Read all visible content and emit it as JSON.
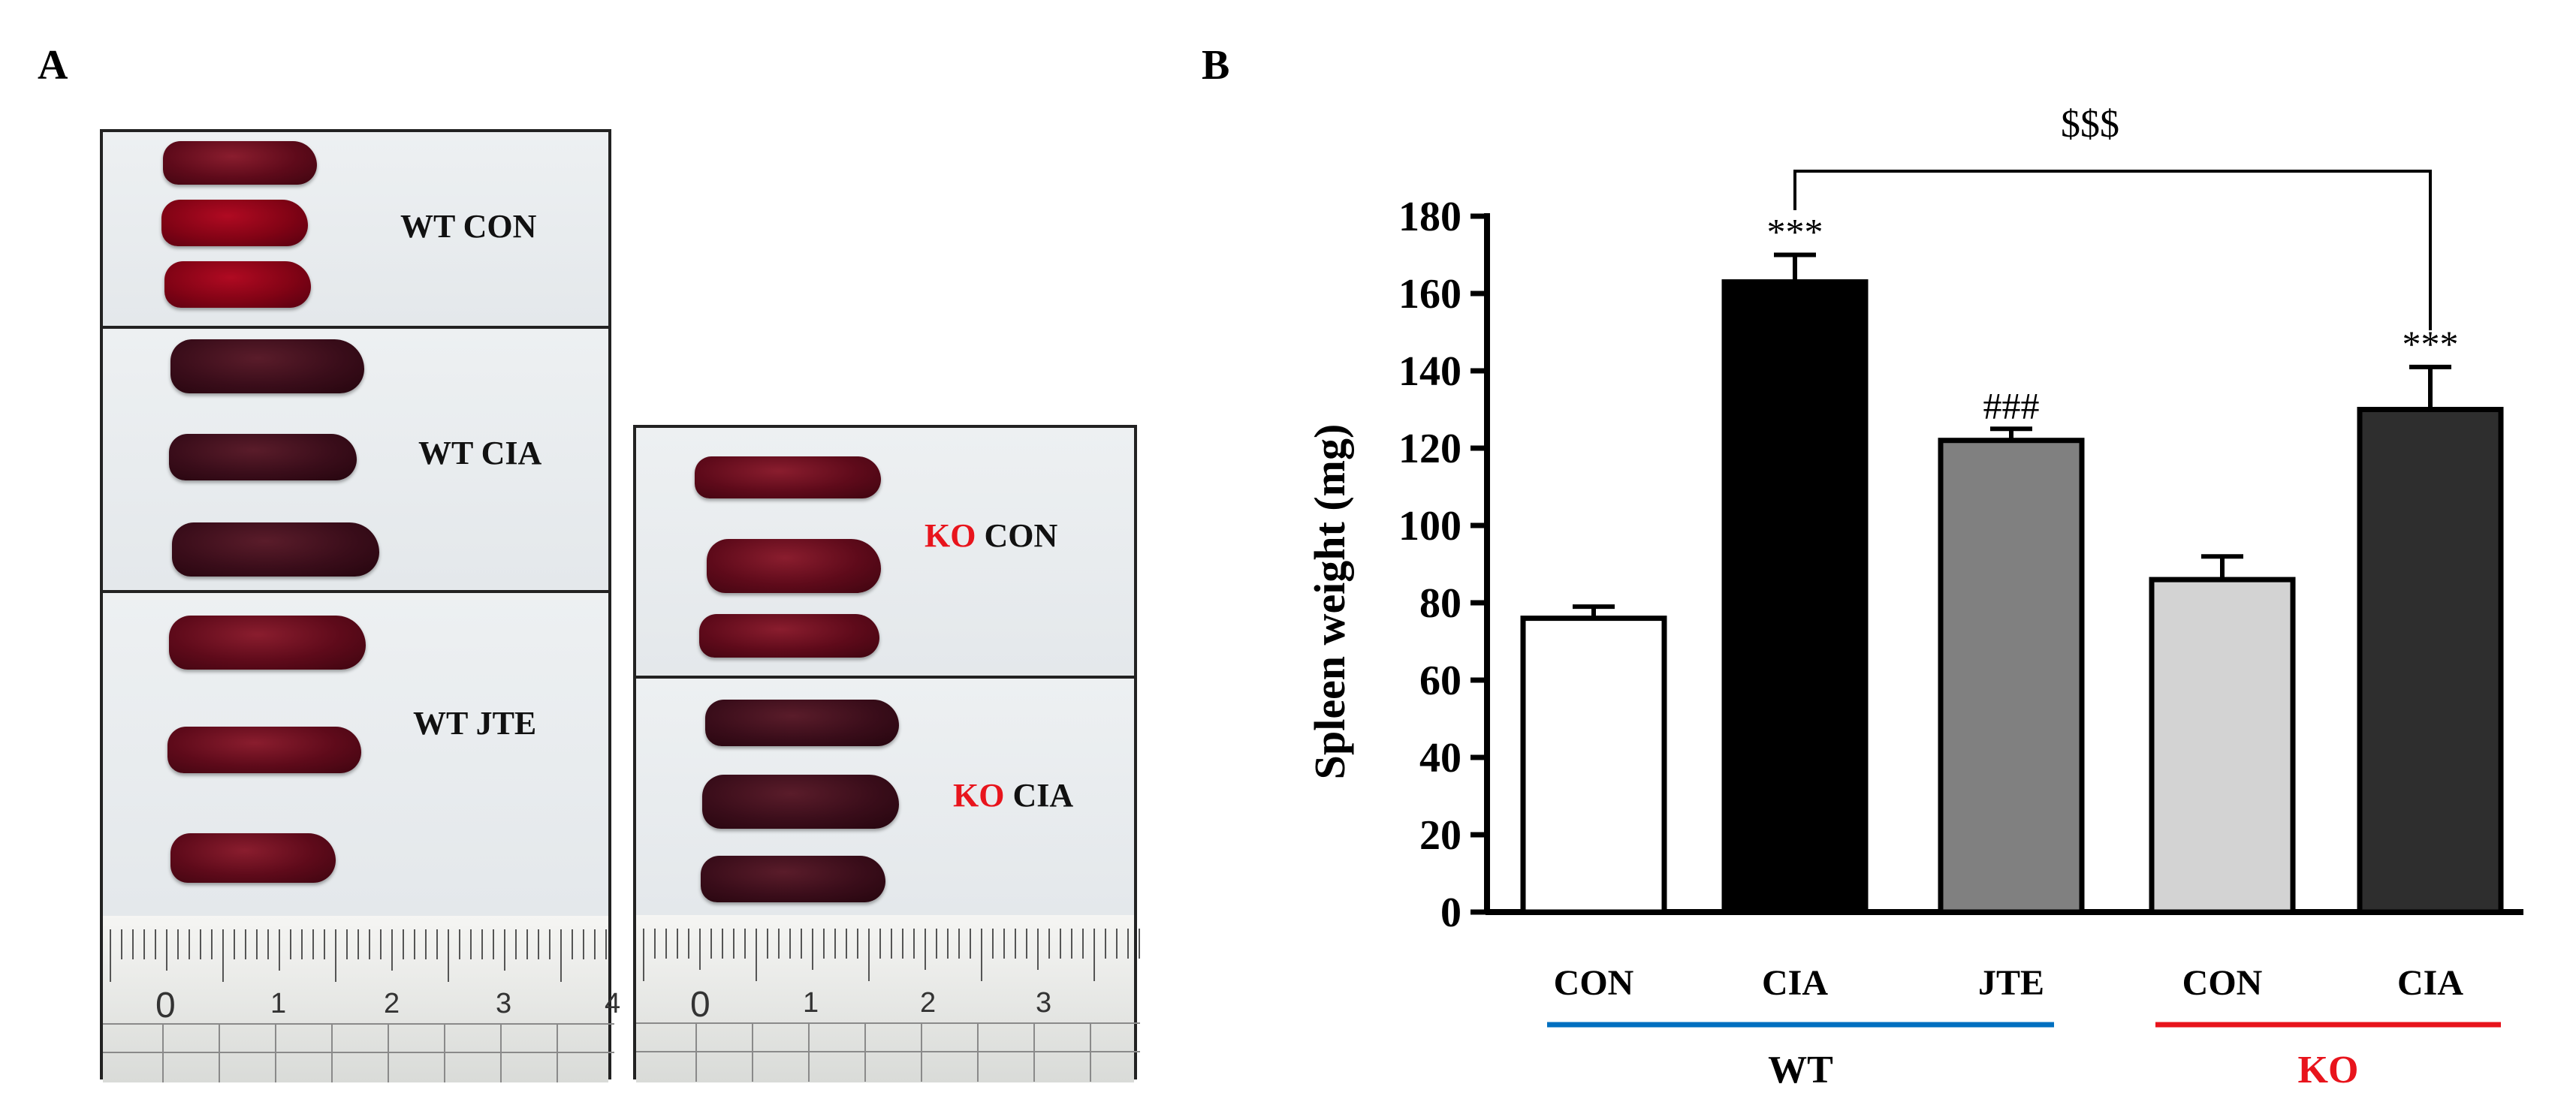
{
  "panel_a": {
    "letter": "A",
    "wt_groups": [
      {
        "prefix": "WT",
        "name": "CON"
      },
      {
        "prefix": "WT",
        "name": "CIA"
      },
      {
        "prefix": "WT",
        "name": "JTE"
      }
    ],
    "ko_groups": [
      {
        "prefix": "KO",
        "name": "CON"
      },
      {
        "prefix": "KO",
        "name": "CIA"
      }
    ],
    "ruler_left": [
      "0",
      "1",
      "2",
      "3",
      "4"
    ],
    "ruler_right": [
      "0",
      "1",
      "2",
      "3"
    ]
  },
  "panel_b": {
    "letter": "B"
  },
  "chart_data": {
    "type": "bar",
    "ylabel": "Spleen weight (mg)",
    "ylim": [
      0,
      180
    ],
    "yticks": [
      0,
      20,
      40,
      60,
      80,
      100,
      120,
      140,
      160,
      180
    ],
    "categories": [
      "CON",
      "CIA",
      "JTE",
      "CON",
      "CIA"
    ],
    "values": [
      76,
      163,
      122,
      86,
      130
    ],
    "errors": [
      3,
      7,
      3,
      6,
      11
    ],
    "bar_colors": [
      "#ffffff",
      "#000000",
      "#808080",
      "#d3d3d3",
      "#2e2e2e"
    ],
    "annotations": [
      "",
      "***",
      "###",
      "",
      "***"
    ],
    "bracket_label": "$$$",
    "groups": [
      {
        "label": "WT",
        "color": "#0070c0",
        "label_color": "#000000"
      },
      {
        "label": "KO",
        "color": "#e8141c",
        "label_color": "#e8141c"
      }
    ]
  }
}
